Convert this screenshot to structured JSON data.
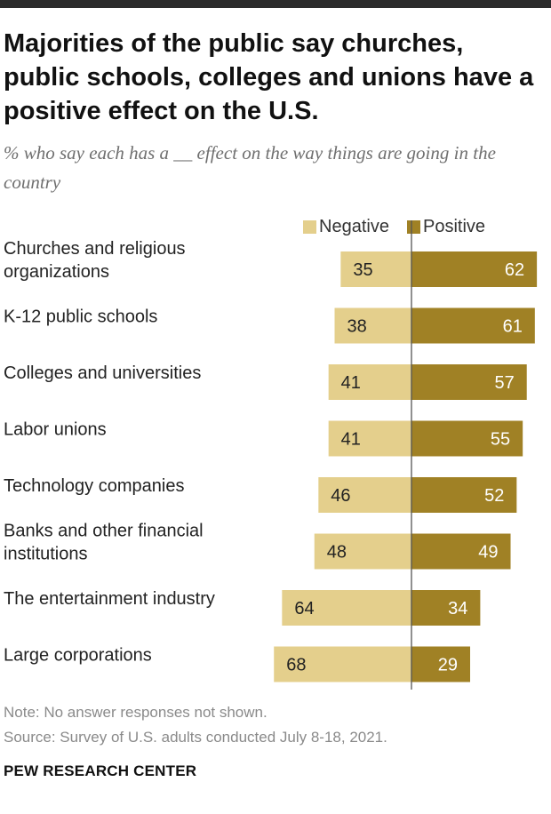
{
  "title": "Majorities of the public say churches, public schools, colleges and unions have a positive effect on the U.S.",
  "subtitle": "% who say each has a __ effect on the way things are going in the country",
  "colors": {
    "negative": "#e4cf8c",
    "positive": "#a08125",
    "divider": "#555555"
  },
  "chart_data": {
    "type": "bar",
    "orientation": "horizontal-diverging",
    "categories": [
      [
        "Churches and religious",
        "organizations"
      ],
      [
        "K-12 public schools"
      ],
      [
        "Colleges and universities"
      ],
      [
        "Labor unions"
      ],
      [
        "Technology companies"
      ],
      [
        "Banks and other financial",
        "institutions"
      ],
      [
        "The entertainment industry"
      ],
      [
        "Large corporations"
      ]
    ],
    "series": [
      {
        "name": "Negative",
        "values": [
          35,
          38,
          41,
          41,
          46,
          48,
          64,
          68
        ]
      },
      {
        "name": "Positive",
        "values": [
          62,
          61,
          57,
          55,
          52,
          49,
          34,
          29
        ]
      }
    ],
    "legend": [
      "Negative",
      "Positive"
    ],
    "legend_position": "top-right"
  },
  "note": "Note: No answer responses not shown.",
  "source": "Source: Survey of U.S. adults conducted July 8-18, 2021.",
  "brand": "PEW RESEARCH CENTER"
}
